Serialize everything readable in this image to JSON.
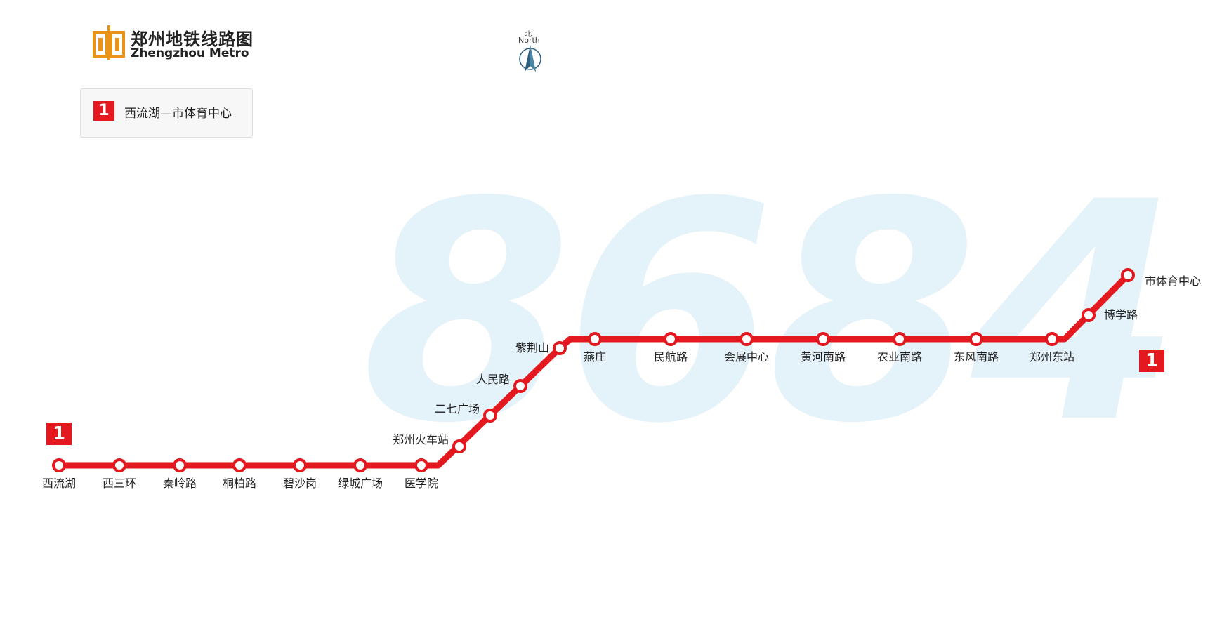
{
  "header": {
    "title_cn": "郑州地铁线路图",
    "title_en": "Zhengzhou Metro",
    "logo_icon": "zhengzhou-metro-logo-icon"
  },
  "compass": {
    "label_cn": "北",
    "label_en": "North",
    "icon": "north-arrow-icon"
  },
  "legend": {
    "line_number": "1",
    "route": "西流湖—市体育中心",
    "color": "#e3191f"
  },
  "watermark": {
    "text": "8684",
    "color": "#e4f2fa"
  },
  "line": {
    "number": "1",
    "color": "#e3191f",
    "stations": [
      {
        "name": "西流湖"
      },
      {
        "name": "西三环"
      },
      {
        "name": "秦岭路"
      },
      {
        "name": "桐柏路"
      },
      {
        "name": "碧沙岗"
      },
      {
        "name": "绿城广场"
      },
      {
        "name": "医学院"
      },
      {
        "name": "郑州火车站"
      },
      {
        "name": "二七广场"
      },
      {
        "name": "人民路"
      },
      {
        "name": "紫荆山"
      },
      {
        "name": "燕庄"
      },
      {
        "name": "民航路"
      },
      {
        "name": "会展中心"
      },
      {
        "name": "黄河南路"
      },
      {
        "name": "农业南路"
      },
      {
        "name": "东风南路"
      },
      {
        "name": "郑州东站"
      },
      {
        "name": "博学路"
      },
      {
        "name": "市体育中心"
      }
    ]
  }
}
